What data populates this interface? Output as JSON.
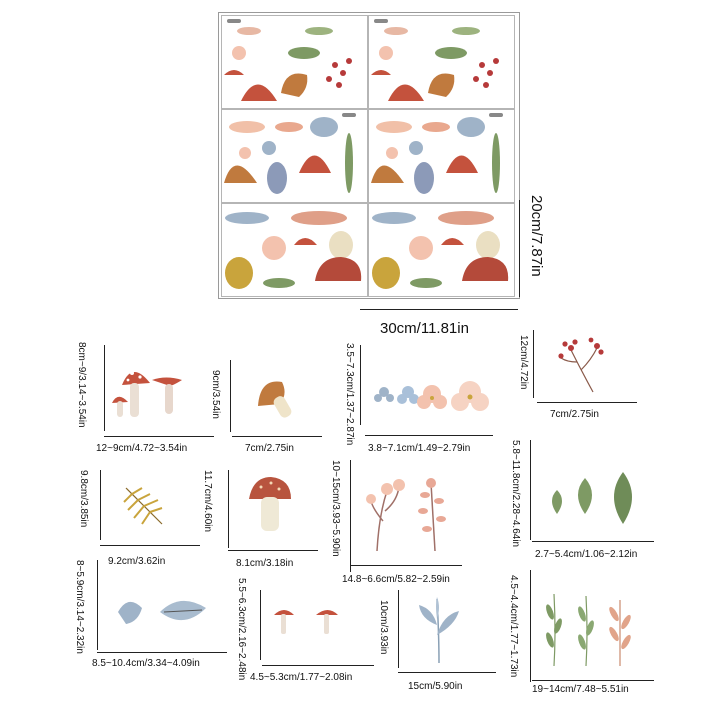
{
  "sheet": {
    "width_label": "30cm/11.81in",
    "height_label": "20cm/7.87in"
  },
  "items": [
    {
      "id": "red-mushrooms",
      "width_label": "12~9cm/4.72~3.54in",
      "height_label": "8cm~9/3.14~3.54in"
    },
    {
      "id": "brown-mushroom",
      "width_label": "7cm/2.75in",
      "height_label": "9cm/3.54in"
    },
    {
      "id": "small-flowers",
      "width_label": "3.8~7.1cm/1.49~2.79in",
      "height_label": "3.5~7.3cm/1.37~2.87in"
    },
    {
      "id": "berry-branch",
      "width_label": "7cm/2.75in",
      "height_label": "12cm/4.72in"
    },
    {
      "id": "fern-leaf",
      "width_label": "9.2cm/3.62in",
      "height_label": "9.8cm/3.85in"
    },
    {
      "id": "white-stem-mushroom",
      "width_label": "8.1cm/3.18in",
      "height_label": "11.7cm/4.60in"
    },
    {
      "id": "pink-flowers",
      "width_label": "14.8~6.6cm/5.82~2.59in",
      "height_label": "10~15cm/3.93~5.90in"
    },
    {
      "id": "green-leaves",
      "width_label": "2.7~5.4cm/1.06~2.12in",
      "height_label": "5.8~11.8cm/2.28~4.64in"
    },
    {
      "id": "blue-leaves",
      "width_label": "8.5~10.4cm/3.34~4.09in",
      "height_label": "8~5.9cm/3.14~2.32in"
    },
    {
      "id": "small-red-mushrooms",
      "width_label": "4.5~5.3cm/1.77~2.08in",
      "height_label": "5.5~6.3cm/2.16~2.48in"
    },
    {
      "id": "blue-sprig",
      "width_label": "15cm/5.90in",
      "height_label": "10cm/3.93in"
    },
    {
      "id": "slim-leaves",
      "width_label": "19~14cm/7.48~5.51in",
      "height_label": "4.5~4.4cm/1.77~1.73in"
    }
  ],
  "colors": {
    "mushroom_red": "#c4523d",
    "mushroom_brown": "#c07a3e",
    "leaf_green": "#7e9a64",
    "leaf_blue": "#9fb3c8",
    "petal_pink": "#f3c2ae",
    "berry_red": "#b63a3a",
    "fern_yellow": "#c9a43c"
  }
}
